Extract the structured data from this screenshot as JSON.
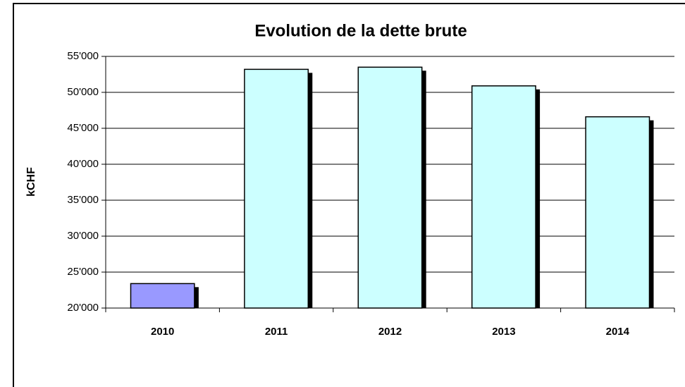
{
  "chart_data": {
    "type": "bar",
    "title": "Evolution de la dette brute",
    "y_label": "kCHF",
    "categories": [
      "2010",
      "2011",
      "2012",
      "2013",
      "2014"
    ],
    "values": [
      23400,
      53200,
      53500,
      50900,
      46600
    ],
    "colors": [
      "#9999ff",
      "#ccffff",
      "#ccffff",
      "#ccffff",
      "#ccffff"
    ],
    "ylim": [
      20000,
      55000
    ],
    "yticks": [
      {
        "value": 20000,
        "label": "20'000"
      },
      {
        "value": 25000,
        "label": "25'000"
      },
      {
        "value": 30000,
        "label": "30'000"
      },
      {
        "value": 35000,
        "label": "35'000"
      },
      {
        "value": 40000,
        "label": "40'000"
      },
      {
        "value": 45000,
        "label": "45'000"
      },
      {
        "value": 50000,
        "label": "50'000"
      },
      {
        "value": 55000,
        "label": "55'000"
      }
    ],
    "grid": true
  }
}
